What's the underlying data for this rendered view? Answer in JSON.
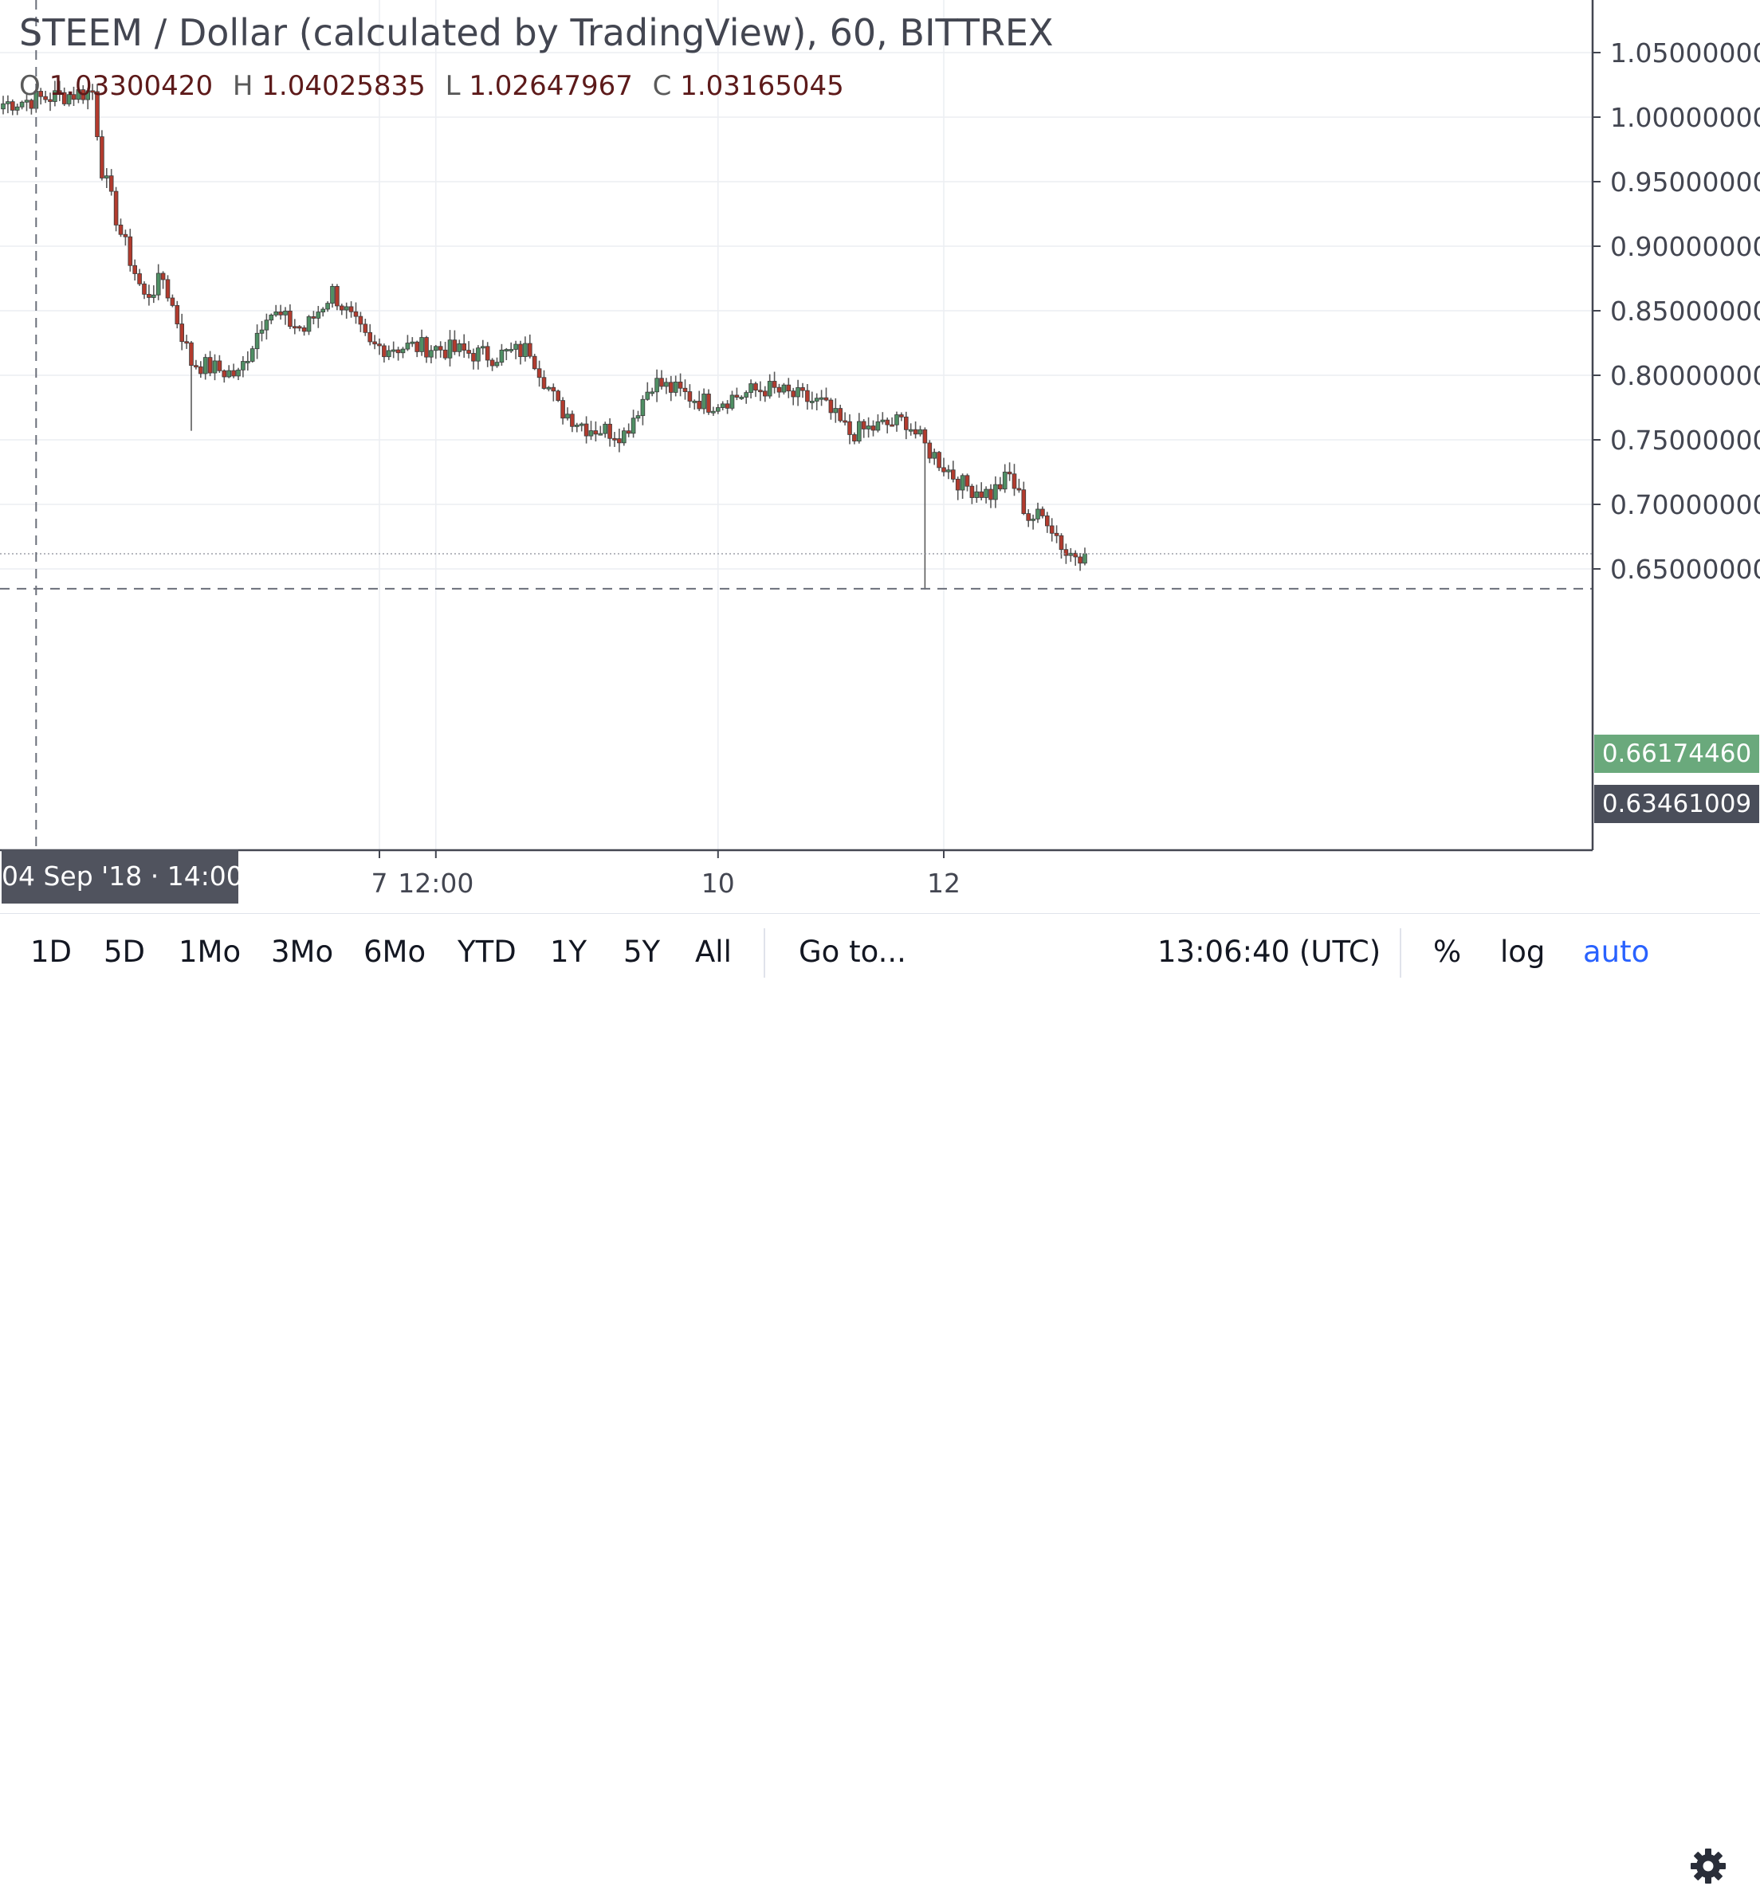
{
  "header": {
    "title": "STEEM / Dollar (calculated by TradingView), 60, BITTREX",
    "ohlc": {
      "o_label": "O",
      "o_value": "1.03300420",
      "h_label": "H",
      "h_value": "1.04025835",
      "l_label": "L",
      "l_value": "1.02647967",
      "c_label": "C",
      "c_value": "1.03165045"
    }
  },
  "colors": {
    "up": "#4f8f64",
    "down": "#b23b2e",
    "wick": "#5a5a5a",
    "grid": "#eceef2",
    "axis": "#434651",
    "last_price_tag": "#6aa97c",
    "crosshair_tag": "#4a4e5a"
  },
  "chart_data": {
    "type": "candlestick",
    "ylim": [
      0.628,
      1.066
    ],
    "y_ticks": [
      "1.05000000",
      "1.00000000",
      "0.95000000",
      "0.90000000",
      "0.85000000",
      "0.80000000",
      "0.75000000",
      "0.70000000",
      "0.65000000"
    ],
    "x_ticks": [
      {
        "label": "7",
        "index": 80
      },
      {
        "label": "12:00",
        "index": 92
      },
      {
        "label": "10",
        "index": 152
      },
      {
        "label": "12",
        "index": 200
      }
    ],
    "last_price": "0.66174460",
    "crosshair": {
      "price": "0.63461009",
      "time_label": "04 Sep '18 · 14:00",
      "index": 7
    },
    "segments": [
      {
        "n": 20,
        "from": 1.01,
        "to": 1.02,
        "low": null
      },
      {
        "n": 2,
        "from": 1.02,
        "to": 0.96,
        "low": null
      },
      {
        "n": 4,
        "from": 0.96,
        "to": 0.91,
        "low": null
      },
      {
        "n": 5,
        "from": 0.91,
        "to": 0.86,
        "low": null
      },
      {
        "n": 4,
        "from": 0.86,
        "to": 0.875,
        "low": null
      },
      {
        "n": 6,
        "from": 0.875,
        "to": 0.81,
        "low": 0.757
      },
      {
        "n": 10,
        "from": 0.81,
        "to": 0.8,
        "low": null
      },
      {
        "n": 6,
        "from": 0.8,
        "to": 0.85,
        "low": null
      },
      {
        "n": 8,
        "from": 0.85,
        "to": 0.835,
        "low": null
      },
      {
        "n": 6,
        "from": 0.835,
        "to": 0.865,
        "low": null
      },
      {
        "n": 8,
        "from": 0.865,
        "to": 0.822,
        "low": null
      },
      {
        "n": 12,
        "from": 0.822,
        "to": 0.822,
        "low": null
      },
      {
        "n": 14,
        "from": 0.822,
        "to": 0.815,
        "low": null
      },
      {
        "n": 8,
        "from": 0.815,
        "to": 0.82,
        "low": null
      },
      {
        "n": 6,
        "from": 0.82,
        "to": 0.775,
        "low": null
      },
      {
        "n": 6,
        "from": 0.775,
        "to": 0.76,
        "low": null
      },
      {
        "n": 8,
        "from": 0.76,
        "to": 0.755,
        "low": null
      },
      {
        "n": 6,
        "from": 0.755,
        "to": 0.795,
        "low": null
      },
      {
        "n": 12,
        "from": 0.795,
        "to": 0.778,
        "low": null
      },
      {
        "n": 12,
        "from": 0.778,
        "to": 0.79,
        "low": null
      },
      {
        "n": 12,
        "from": 0.79,
        "to": 0.778,
        "low": null
      },
      {
        "n": 6,
        "from": 0.778,
        "to": 0.755,
        "low": null
      },
      {
        "n": 12,
        "from": 0.755,
        "to": 0.765,
        "low": null
      },
      {
        "n": 4,
        "from": 0.765,
        "to": 0.745,
        "low": 0.634
      },
      {
        "n": 8,
        "from": 0.745,
        "to": 0.715,
        "low": null
      },
      {
        "n": 6,
        "from": 0.715,
        "to": 0.708,
        "low": null
      },
      {
        "n": 4,
        "from": 0.708,
        "to": 0.722,
        "low": null
      },
      {
        "n": 4,
        "from": 0.722,
        "to": 0.69,
        "low": null
      },
      {
        "n": 4,
        "from": 0.69,
        "to": 0.69,
        "low": null
      },
      {
        "n": 4,
        "from": 0.69,
        "to": 0.662,
        "low": null
      },
      {
        "n": 4,
        "from": 0.662,
        "to": 0.662,
        "low": null
      }
    ]
  },
  "toolbar": {
    "ranges": [
      "1D",
      "5D",
      "1Mo",
      "3Mo",
      "6Mo",
      "YTD",
      "1Y",
      "5Y",
      "All"
    ],
    "goto": "Go to...",
    "time": "13:06:40 (UTC)",
    "percent": "%",
    "log": "log",
    "auto": "auto",
    "settings_icon": "gear-icon"
  }
}
